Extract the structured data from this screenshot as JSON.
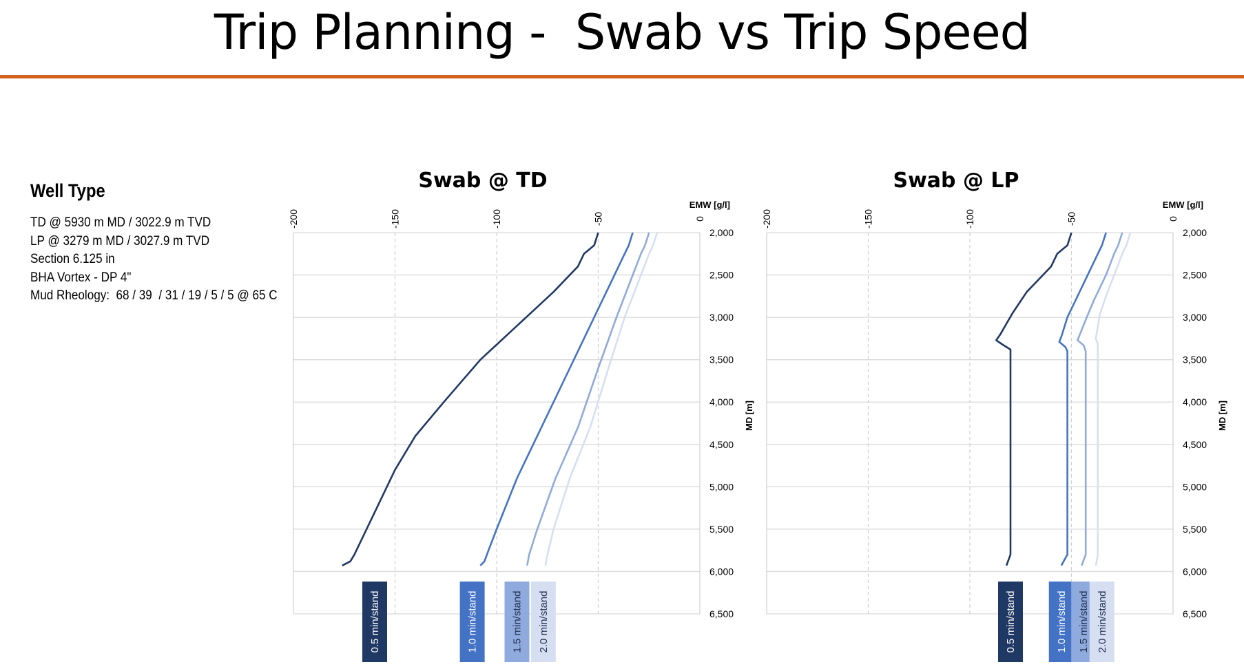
{
  "slide": {
    "title": "Trip Planning -  Swab vs Trip Speed"
  },
  "info": {
    "heading": "Well Type",
    "lines": [
      "TD @ 5930 m MD / 3022.9 m TVD",
      "LP @ 3279 m MD / 3027.9 m TVD",
      "Section 6.125 in",
      "BHA Vortex - DP 4\"",
      "Mud Rheology:  68 / 39  / 31 / 19 / 5 / 5 @ 65 C"
    ]
  },
  "colors": {
    "title_rule": "#d4621f",
    "series": [
      "#203864",
      "#4472c4",
      "#8faadc",
      "#d6dff2"
    ],
    "grid": "#d9d9d9"
  },
  "chart_data": [
    {
      "type": "line",
      "title": "Swab @ TD",
      "xlabel": "EMW [g/l]",
      "ylabel": "MD [m]",
      "xlim": [
        -200,
        0
      ],
      "ylim": [
        2000,
        6500
      ],
      "y_inverted": true,
      "x_ticks": [
        -200,
        -150,
        -100,
        -50,
        0
      ],
      "y_ticks": [
        "2,000",
        "2,500",
        "3,000",
        "3,500",
        "4,000",
        "4,500",
        "5,000",
        "5,500",
        "6,000",
        "6,500"
      ],
      "grid": "vertical-dashed",
      "legend": "bottom-labels",
      "series": [
        {
          "name": "0.5 min/stand",
          "label_x": -160,
          "points": [
            [
              -50,
              2000
            ],
            [
              -52,
              2150
            ],
            [
              -57,
              2250
            ],
            [
              -60,
              2400
            ],
            [
              -72,
              2700
            ],
            [
              -90,
              3100
            ],
            [
              -108,
              3500
            ],
            [
              -126,
              4000
            ],
            [
              -140,
              4400
            ],
            [
              -150,
              4800
            ],
            [
              -160,
              5300
            ],
            [
              -166,
              5600
            ],
            [
              -170,
              5800
            ],
            [
              -172,
              5880
            ],
            [
              -176,
              5930
            ]
          ]
        },
        {
          "name": "1.0 min/stand",
          "label_x": -112,
          "points": [
            [
              -33,
              2000
            ],
            [
              -35,
              2150
            ],
            [
              -37,
              2250
            ],
            [
              -42,
              2500
            ],
            [
              -52,
              3000
            ],
            [
              -64,
              3600
            ],
            [
              -78,
              4300
            ],
            [
              -90,
              4900
            ],
            [
              -100,
              5500
            ],
            [
              -104,
              5750
            ],
            [
              -106,
              5880
            ],
            [
              -108,
              5930
            ]
          ]
        },
        {
          "name": "1.5 min/stand",
          "label_x": -90,
          "points": [
            [
              -25,
              2000
            ],
            [
              -27,
              2150
            ],
            [
              -29,
              2250
            ],
            [
              -33,
              2500
            ],
            [
              -41,
              3000
            ],
            [
              -50,
              3600
            ],
            [
              -60,
              4300
            ],
            [
              -71,
              4900
            ],
            [
              -80,
              5500
            ],
            [
              -84,
              5800
            ],
            [
              -85,
              5930
            ]
          ]
        },
        {
          "name": "2.0 min/stand",
          "label_x": -77,
          "points": [
            [
              -21,
              2000
            ],
            [
              -23,
              2150
            ],
            [
              -25,
              2250
            ],
            [
              -29,
              2500
            ],
            [
              -37,
              3000
            ],
            [
              -45,
              3600
            ],
            [
              -54,
              4300
            ],
            [
              -64,
              4900
            ],
            [
              -72,
              5500
            ],
            [
              -75,
              5800
            ],
            [
              -76,
              5930
            ]
          ]
        }
      ]
    },
    {
      "type": "line",
      "title": "Swab @ LP",
      "xlabel": "EMW [g/l]",
      "ylabel": "MD [m]",
      "xlim": [
        -200,
        0
      ],
      "ylim": [
        2000,
        6500
      ],
      "y_inverted": true,
      "x_ticks": [
        -200,
        -150,
        -100,
        -50,
        0
      ],
      "y_ticks": [
        "2,000",
        "2,500",
        "3,000",
        "3,500",
        "4,000",
        "4,500",
        "5,000",
        "5,500",
        "6,000",
        "6,500"
      ],
      "grid": "vertical-dashed",
      "legend": "bottom-labels",
      "series": [
        {
          "name": "0.5 min/stand",
          "label_x": -80,
          "points": [
            [
              -50,
              2000
            ],
            [
              -52,
              2150
            ],
            [
              -57,
              2250
            ],
            [
              -60,
              2400
            ],
            [
              -72,
              2700
            ],
            [
              -79,
              2950
            ],
            [
              -85,
              3200
            ],
            [
              -87,
              3270
            ],
            [
              -84,
              3320
            ],
            [
              -80,
              3380
            ],
            [
              -80,
              3500
            ],
            [
              -80,
              5800
            ],
            [
              -82,
              5930
            ]
          ]
        },
        {
          "name": "1.0 min/stand",
          "label_x": -55,
          "points": [
            [
              -33,
              2000
            ],
            [
              -35,
              2150
            ],
            [
              -37,
              2250
            ],
            [
              -42,
              2500
            ],
            [
              -48,
              2800
            ],
            [
              -52,
              3000
            ],
            [
              -55,
              3230
            ],
            [
              -56,
              3290
            ],
            [
              -53,
              3350
            ],
            [
              -52,
              3400
            ],
            [
              -52,
              5800
            ],
            [
              -55,
              5930
            ]
          ]
        },
        {
          "name": "1.5 min/stand",
          "label_x": -44,
          "points": [
            [
              -25,
              2000
            ],
            [
              -27,
              2150
            ],
            [
              -29,
              2250
            ],
            [
              -33,
              2500
            ],
            [
              -39,
              2800
            ],
            [
              -43,
              3030
            ],
            [
              -47,
              3270
            ],
            [
              -44,
              3330
            ],
            [
              -43,
              3400
            ],
            [
              -43,
              5800
            ],
            [
              -45,
              5930
            ]
          ]
        },
        {
          "name": "2.0 min/stand",
          "label_x": -35,
          "points": [
            [
              -21,
              2000
            ],
            [
              -23,
              2150
            ],
            [
              -25,
              2250
            ],
            [
              -29,
              2500
            ],
            [
              -33,
              2750
            ],
            [
              -36,
              2960
            ],
            [
              -38,
              3250
            ],
            [
              -37,
              3320
            ],
            [
              -37,
              3400
            ],
            [
              -37,
              5800
            ],
            [
              -38,
              5930
            ]
          ]
        }
      ]
    }
  ]
}
